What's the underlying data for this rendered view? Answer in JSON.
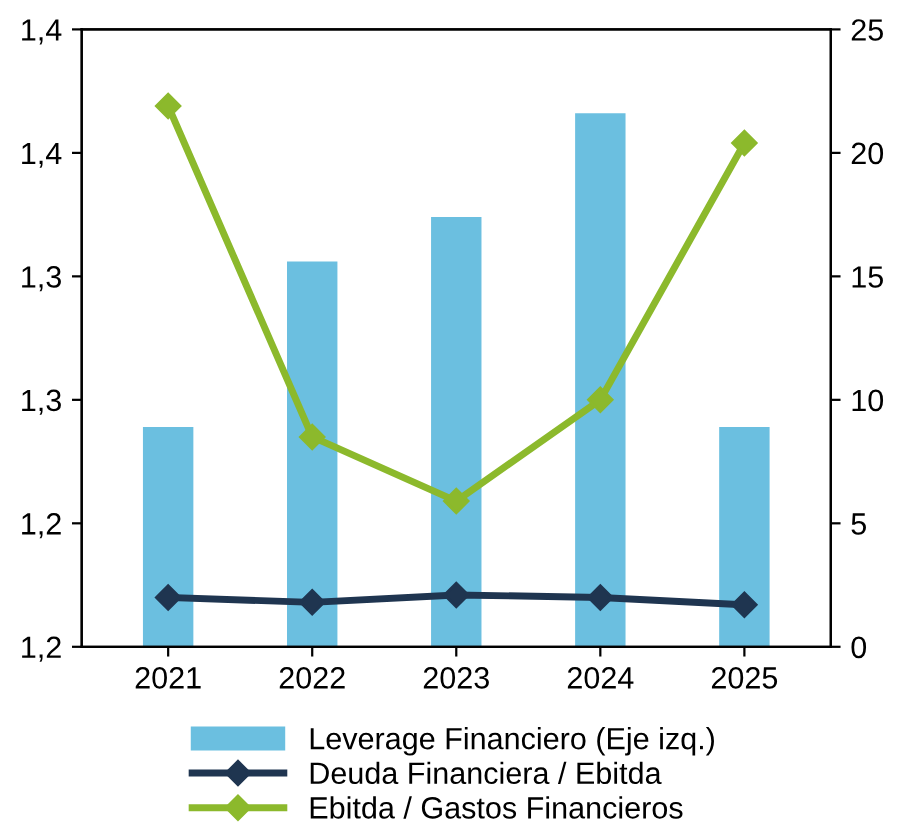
{
  "chart_data": {
    "type": "bar",
    "categories": [
      "2021",
      "2022",
      "2023",
      "2024",
      "2025"
    ],
    "series": [
      {
        "name": "Leverage Financiero (Eje izq.)",
        "color": "#6bbfe0",
        "values": [
          1.239,
          1.306,
          1.324,
          1.366,
          1.239
        ]
      },
      {
        "name": "Deuda Financiera / Ebitda",
        "type": "line",
        "axis": "y2",
        "color": "#1f3550",
        "marker": "diamond",
        "values": [
          2.0,
          1.8,
          2.1,
          2.0,
          1.7
        ]
      },
      {
        "name": "Ebitda / Gastos Financieros",
        "type": "line",
        "axis": "y2",
        "color": "#8cb92c",
        "marker": "diamond",
        "values": [
          21.9,
          8.5,
          5.9,
          10.0,
          20.4
        ]
      }
    ],
    "ylim": [
      1.15,
      1.4
    ],
    "yticks": [
      {
        "value": 1.15,
        "label": "1,2"
      },
      {
        "value": 1.2,
        "label": "1,2"
      },
      {
        "value": 1.25,
        "label": "1,3"
      },
      {
        "value": 1.3,
        "label": "1,3"
      },
      {
        "value": 1.35,
        "label": "1,4"
      },
      {
        "value": 1.4,
        "label": "1,4"
      }
    ],
    "y2lim": [
      0,
      25
    ],
    "y2ticks": [
      0,
      5,
      10,
      15,
      20,
      25
    ],
    "grid": false,
    "legend": "bottom"
  }
}
